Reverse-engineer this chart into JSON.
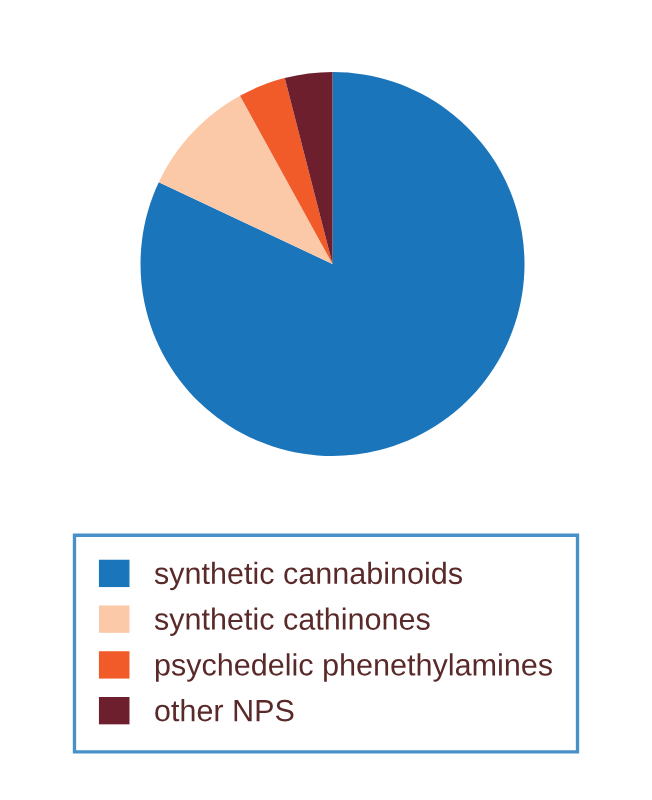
{
  "chart_data": {
    "type": "pie",
    "categories": [
      "synthetic cannabinoids",
      "synthetic cathinones",
      "psychedelic phenethylamines",
      "other NPS"
    ],
    "values": [
      82,
      10,
      4,
      4
    ],
    "colors": [
      "#1b75bb",
      "#fcc9a8",
      "#f15a29",
      "#6d1f2e"
    ],
    "legend": "bottom"
  }
}
